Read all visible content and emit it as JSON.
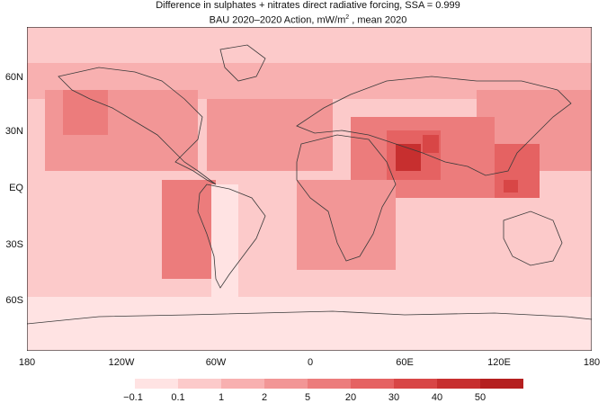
{
  "title": {
    "line1": "Difference in sulphates + nitrates direct radiative forcing, SSA = 0.999",
    "line2_pre": "BAU 2020–2020 Action, mW/m",
    "line2_sup": "2",
    "line2_post": " , mean 2020"
  },
  "lat_labels": [
    "60N",
    "30N",
    "EQ",
    "30S",
    "60S"
  ],
  "lon_labels": [
    "180",
    "120W",
    "60W",
    "0",
    "60E",
    "120E",
    "180"
  ],
  "colorbar": {
    "labels": [
      "−0.1",
      "0.1",
      "1",
      "2",
      "5",
      "20",
      "30",
      "40",
      "50"
    ],
    "colors": [
      "#ffe3e3",
      "#fccaca",
      "#f8b0b0",
      "#f29696",
      "#ec7c7c",
      "#e56262",
      "#d84646",
      "#c72f2f",
      "#b51f1f"
    ]
  },
  "map_colors": {
    "ocean_base": "#fccaca",
    "land_base": "#f8b0b0",
    "outline": "#3a3a3a"
  }
}
